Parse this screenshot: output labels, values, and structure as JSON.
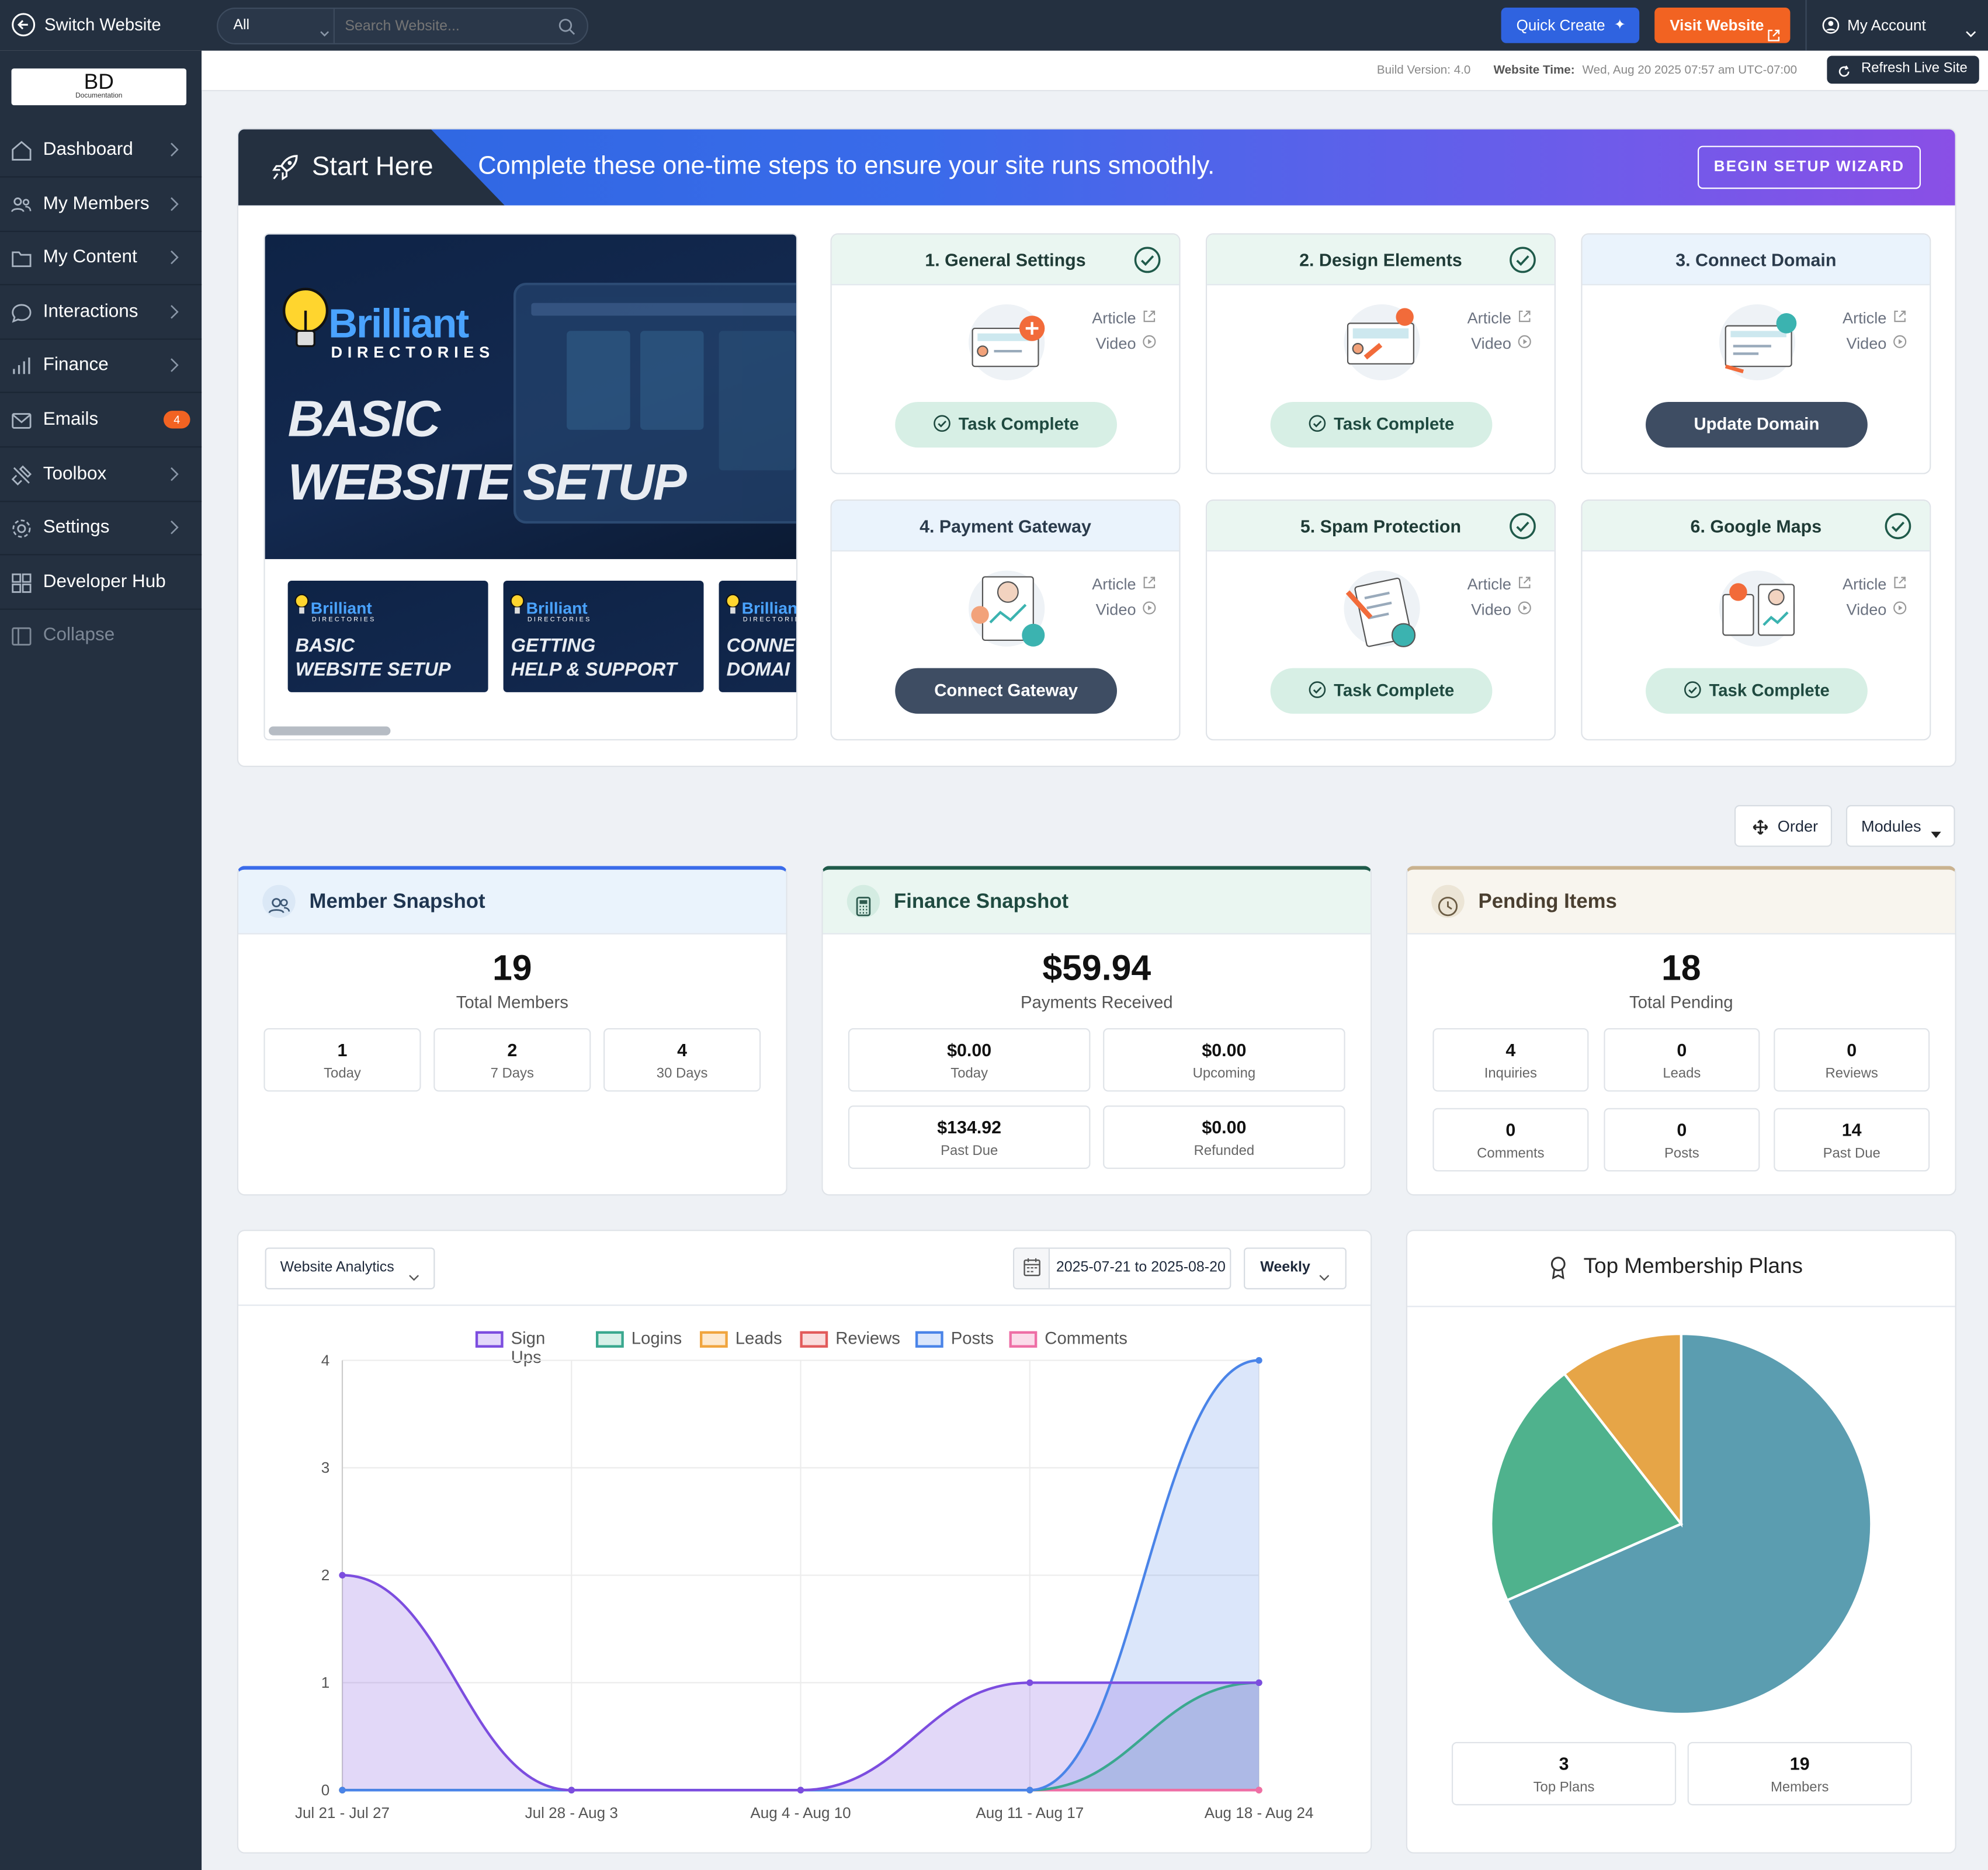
{
  "topbar": {
    "switch_label": "Switch Website",
    "filter_value": "All",
    "search_placeholder": "Search Website...",
    "quick_create": "Quick Create",
    "visit_website": "Visit Website",
    "my_account": "My Account"
  },
  "logo": {
    "text": "BD",
    "subtext": "Documentation"
  },
  "sidebar": {
    "items": [
      {
        "label": "Dashboard"
      },
      {
        "label": "My Members"
      },
      {
        "label": "My Content"
      },
      {
        "label": "Interactions"
      },
      {
        "label": "Finance"
      },
      {
        "label": "Emails",
        "badge": "4"
      },
      {
        "label": "Toolbox"
      },
      {
        "label": "Settings"
      },
      {
        "label": "Developer Hub"
      },
      {
        "label": "Collapse"
      }
    ]
  },
  "subbar": {
    "build_version": "Build Version: 4.0",
    "website_time_label": "Website Time:",
    "website_time_value": "Wed, Aug 20 2025 07:57 am UTC-07:00",
    "refresh_label": "Refresh Live Site"
  },
  "start_here": {
    "title": "Start Here",
    "message": "Complete these one-time steps to ensure your site runs smoothly.",
    "wizard_button": "BEGIN SETUP WIZARD"
  },
  "video": {
    "brand_main": "Brilliant",
    "brand_sub": "DIRECTORIES",
    "headline_1": "BASIC",
    "headline_2": "WEBSITE SETUP",
    "thumbs": [
      {
        "brand": "Brilliant",
        "sub": "DIRECTORIES",
        "l1": "BASIC",
        "l2": "WEBSITE SETUP"
      },
      {
        "brand": "Brilliant",
        "sub": "DIRECTORIES",
        "l1": "GETTING",
        "l2": "HELP & SUPPORT"
      },
      {
        "brand": "Brilliant",
        "sub": "DIRECTORIES",
        "l1": "CONNE",
        "l2": "DOMAI"
      }
    ]
  },
  "tasks": [
    {
      "title": "1. General Settings",
      "done": true,
      "article": "Article",
      "video": "Video",
      "button": "Task Complete"
    },
    {
      "title": "2. Design Elements",
      "done": true,
      "article": "Article",
      "video": "Video",
      "button": "Task Complete"
    },
    {
      "title": "3. Connect Domain",
      "done": false,
      "article": "Article",
      "video": "Video",
      "button": "Update Domain"
    },
    {
      "title": "4. Payment Gateway",
      "done": false,
      "article": "Article",
      "video": "Video",
      "button": "Connect Gateway"
    },
    {
      "title": "5. Spam Protection",
      "done": true,
      "article": "Article",
      "video": "Video",
      "button": "Task Complete"
    },
    {
      "title": "6. Google Maps",
      "done": true,
      "article": "Article",
      "video": "Video",
      "button": "Task Complete"
    }
  ],
  "toolbar": {
    "order": "Order",
    "modules": "Modules"
  },
  "member_snapshot": {
    "title": "Member Snapshot",
    "total": "19",
    "total_label": "Total Members",
    "stats": [
      {
        "value": "1",
        "label": "Today"
      },
      {
        "value": "2",
        "label": "7 Days"
      },
      {
        "value": "4",
        "label": "30 Days"
      }
    ]
  },
  "finance_snapshot": {
    "title": "Finance Snapshot",
    "total": "$59.94",
    "total_label": "Payments Received",
    "stats": [
      {
        "value": "$0.00",
        "label": "Today"
      },
      {
        "value": "$0.00",
        "label": "Upcoming"
      },
      {
        "value": "$134.92",
        "label": "Past Due"
      },
      {
        "value": "$0.00",
        "label": "Refunded"
      }
    ]
  },
  "pending_items": {
    "title": "Pending Items",
    "total": "18",
    "total_label": "Total Pending",
    "stats": [
      {
        "value": "4",
        "label": "Inquiries"
      },
      {
        "value": "0",
        "label": "Leads"
      },
      {
        "value": "0",
        "label": "Reviews"
      },
      {
        "value": "0",
        "label": "Comments"
      },
      {
        "value": "0",
        "label": "Posts"
      },
      {
        "value": "14",
        "label": "Past Due"
      }
    ]
  },
  "analytics": {
    "selector": "Website Analytics",
    "date_range": "2025-07-21 to 2025-08-20",
    "interval": "Weekly"
  },
  "membership_plans": {
    "title": "Top Membership Plans",
    "stats": [
      {
        "value": "3",
        "label": "Top Plans"
      },
      {
        "value": "19",
        "label": "Members"
      }
    ]
  },
  "colors": {
    "sidebar": "#243040",
    "quick_create": "#2f63e0",
    "visit_website": "#f26322",
    "signups": "#7c4ddf",
    "logins": "#3aa88f",
    "leads": "#f0a53e",
    "reviews": "#e25b5b",
    "posts": "#4a84e8",
    "comments": "#ee6fa6"
  },
  "chart_data": [
    {
      "type": "line",
      "x": [
        "Jul 21 - Jul 27",
        "Jul 28 - Aug 3",
        "Aug 4 - Aug 10",
        "Aug 11 - Aug 17",
        "Aug 18 - Aug 24"
      ],
      "ylim": [
        0,
        4
      ],
      "yticks": [
        "0",
        "1",
        "2",
        "3",
        "4"
      ],
      "legend_position": "top",
      "series": [
        {
          "name": "Sign Ups",
          "values": [
            2,
            0,
            0,
            1,
            1
          ],
          "color": "#7c4ddf"
        },
        {
          "name": "Logins",
          "values": [
            0,
            0,
            0,
            0,
            1
          ],
          "color": "#3aa88f"
        },
        {
          "name": "Leads",
          "values": [
            0,
            0,
            0,
            0,
            0
          ],
          "color": "#f0a53e"
        },
        {
          "name": "Reviews",
          "values": [
            0,
            0,
            0,
            0,
            0
          ],
          "color": "#e25b5b"
        },
        {
          "name": "Posts",
          "values": [
            0,
            0,
            0,
            0,
            4
          ],
          "color": "#4a84e8"
        },
        {
          "name": "Comments",
          "values": [
            0,
            0,
            0,
            0,
            0
          ],
          "color": "#ee6fa6"
        }
      ]
    },
    {
      "type": "pie",
      "values": [
        13,
        4,
        2
      ],
      "colors": [
        "#5b9db0",
        "#4fb28d",
        "#e6a547"
      ]
    }
  ]
}
